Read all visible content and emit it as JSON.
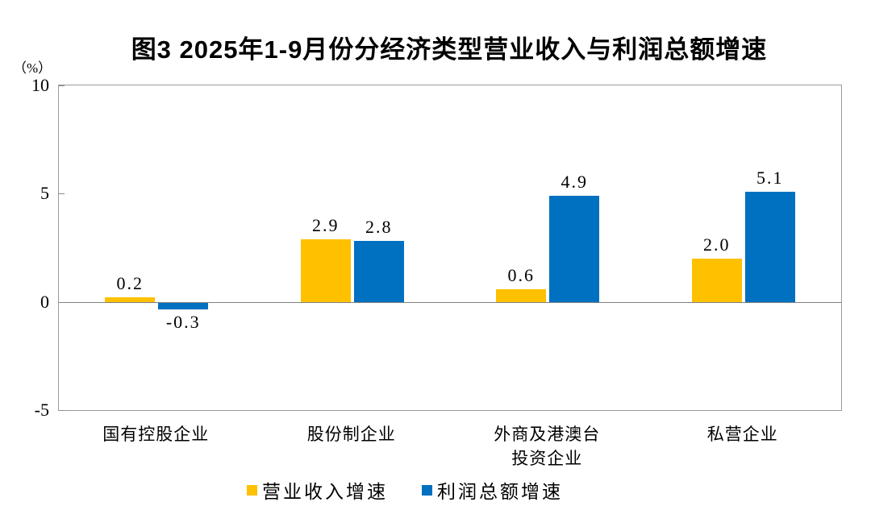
{
  "chart_data": {
    "type": "bar",
    "title": "图3 2025年1-9月份分经济类型营业收入与利润总额增速",
    "unit_label": "（%）",
    "categories": [
      "国有控股企业",
      "股份制企业",
      "外商及港澳台\n投资企业",
      "私营企业"
    ],
    "series": [
      {
        "name": "营业收入增速",
        "color": "#FFC000",
        "values": [
          0.2,
          2.9,
          0.6,
          2.0
        ]
      },
      {
        "name": "利润总额增速",
        "color": "#0070C0",
        "values": [
          -0.3,
          2.8,
          4.9,
          5.1
        ]
      }
    ],
    "ylim": [
      -5,
      10
    ],
    "yticks": [
      10,
      5,
      0,
      -5
    ],
    "value_label_decimals": 1,
    "grid": false,
    "legend_position": "bottom"
  },
  "colors": {
    "frame": "#999999",
    "zero_line": "#808080",
    "tick": "#8c8c8c",
    "text": "#000000",
    "background": "#ffffff"
  }
}
